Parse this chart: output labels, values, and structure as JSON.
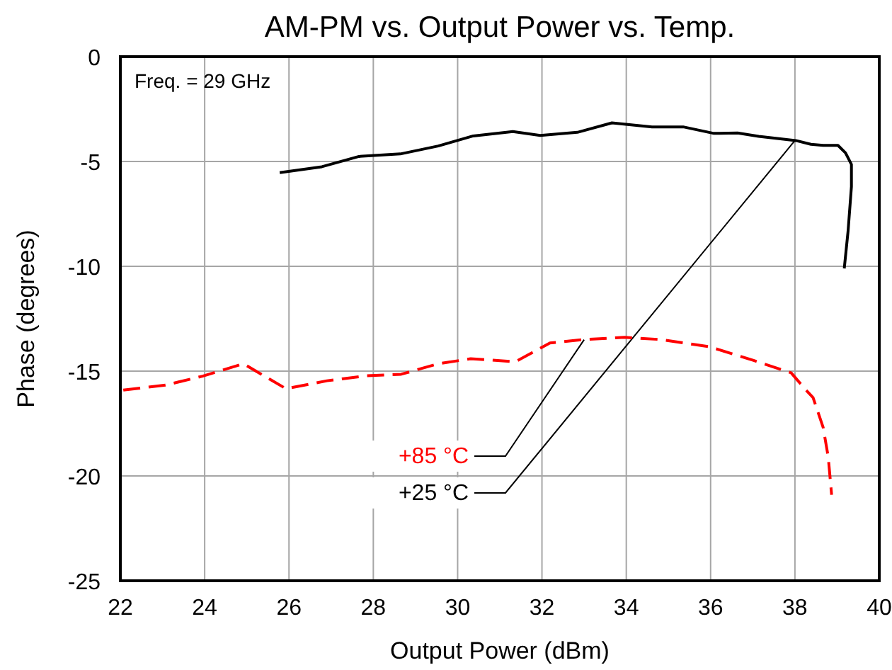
{
  "chart_data": {
    "type": "line",
    "title": "AM-PM vs. Output Power vs. Temp.",
    "xlabel": "Output Power (dBm)",
    "ylabel": "Phase (degrees)",
    "xlim": [
      22,
      40
    ],
    "xticks": [
      22,
      24,
      26,
      28,
      30,
      32,
      34,
      36,
      38,
      40
    ],
    "ylim": [
      -25,
      0
    ],
    "yticks": [
      -25,
      -20,
      -15,
      -10,
      -5,
      0
    ],
    "grid": true,
    "annotations": [
      "Freq. = 29 GHz",
      {
        "text": "+85 °C",
        "x": 33.0,
        "y": -13.5
      },
      {
        "text": "+25 °C",
        "x": 38.0,
        "y": -4.0
      }
    ],
    "series": [
      {
        "color": "#000000",
        "line_style": "solid",
        "x": [
          25.78,
          26.78,
          27.66,
          28.64,
          29.54,
          30.37,
          31.31,
          31.96,
          32.84,
          33.66,
          34.61,
          35.35,
          36.08,
          36.64,
          37.14,
          38.02,
          38.38,
          38.67,
          39.02,
          39.2,
          39.34,
          39.34,
          39.26,
          39.17
        ],
        "values": [
          -5.53,
          -5.25,
          -4.76,
          -4.64,
          -4.26,
          -3.78,
          -3.57,
          -3.76,
          -3.61,
          -3.16,
          -3.35,
          -3.35,
          -3.66,
          -3.64,
          -3.8,
          -4.0,
          -4.18,
          -4.23,
          -4.23,
          -4.59,
          -5.14,
          -6.2,
          -8.33,
          -10.1
        ]
      },
      {
        "color": "#ff0000",
        "line_style": "dashed",
        "x": [
          22.07,
          23.07,
          23.95,
          24.92,
          25.93,
          26.9,
          27.84,
          28.66,
          29.54,
          30.31,
          31.37,
          32.19,
          33.02,
          33.96,
          34.79,
          35.96,
          37.02,
          37.91,
          38.26,
          38.43,
          38.67,
          38.79,
          38.87
        ],
        "values": [
          -15.9,
          -15.67,
          -15.24,
          -14.65,
          -15.84,
          -15.46,
          -15.22,
          -15.15,
          -14.65,
          -14.41,
          -14.55,
          -13.66,
          -13.49,
          -13.39,
          -13.49,
          -13.83,
          -14.49,
          -15.08,
          -15.9,
          -16.26,
          -17.69,
          -19.1,
          -20.9
        ]
      }
    ]
  }
}
